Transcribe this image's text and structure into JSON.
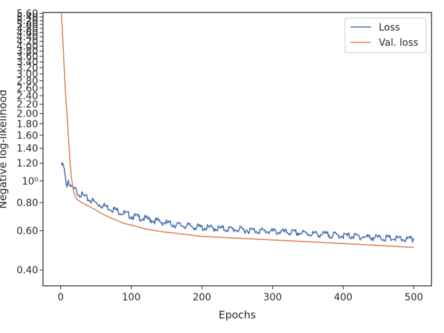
{
  "chart_data": {
    "type": "line",
    "xlabel": "Epochs",
    "ylabel": "Negative log-likelihood",
    "y_scale": "log",
    "xlim": [
      -25,
      525
    ],
    "ylim": [
      0.34,
      5.65
    ],
    "x_ticks": [
      0,
      100,
      200,
      300,
      400,
      500
    ],
    "x_tick_labels": [
      "0",
      "100",
      "200",
      "300",
      "400",
      "500"
    ],
    "y_ticks": [
      0.4,
      0.6,
      0.8,
      1.0,
      1.2,
      1.4,
      1.6,
      1.8,
      2.0,
      2.2,
      2.4,
      2.6,
      2.8,
      3.0,
      3.2,
      3.4,
      3.6,
      3.8,
      4.0,
      4.2,
      4.4,
      4.6,
      4.8,
      5.0,
      5.2,
      5.4,
      5.6
    ],
    "y_tick_labels": [
      "0.40",
      "0.60",
      "0.80",
      "10⁰",
      "1.20",
      "1.40",
      "1.60",
      "1.80",
      "2.00",
      "2.20",
      "2.40",
      "2.60",
      "2.80",
      "3.00",
      "3.20",
      "3.40",
      "3.60",
      "3.80",
      "4.00",
      "4.20",
      "4.40",
      "4.60",
      "4.80",
      "5.00",
      "5.20",
      "5.40",
      "5.60"
    ],
    "legend": {
      "placement": "top-right"
    },
    "grid": false,
    "series": [
      {
        "name": "Loss",
        "color": "#4c72b0",
        "x": [
          1,
          3,
          5,
          7,
          9,
          11,
          13,
          15,
          18,
          20,
          22,
          25,
          30,
          35,
          40,
          45,
          50,
          60,
          70,
          80,
          90,
          100,
          110,
          120,
          130,
          140,
          150,
          160,
          170,
          180,
          190,
          200,
          220,
          240,
          260,
          280,
          300,
          320,
          340,
          360,
          380,
          400,
          420,
          440,
          460,
          480,
          500
        ],
        "y": [
          1.19,
          1.2,
          1.14,
          1.03,
          0.97,
          1.03,
          0.98,
          0.95,
          0.93,
          0.93,
          0.92,
          0.9,
          0.88,
          0.86,
          0.84,
          0.83,
          0.81,
          0.79,
          0.77,
          0.75,
          0.73,
          0.71,
          0.7,
          0.69,
          0.68,
          0.67,
          0.66,
          0.65,
          0.645,
          0.64,
          0.635,
          0.63,
          0.625,
          0.62,
          0.615,
          0.61,
          0.605,
          0.6,
          0.595,
          0.59,
          0.585,
          0.58,
          0.575,
          0.57,
          0.565,
          0.56,
          0.555
        ]
      },
      {
        "name": "Val. loss",
        "color": "#dd8452",
        "x": [
          1,
          3,
          5,
          7,
          9,
          11,
          13,
          15,
          17,
          19,
          21,
          23,
          25,
          30,
          35,
          40,
          50,
          60,
          70,
          80,
          90,
          100,
          120,
          140,
          160,
          180,
          200,
          250,
          300,
          350,
          400,
          450,
          500
        ],
        "y": [
          5.6,
          4.3,
          3.2,
          2.4,
          2.0,
          1.55,
          1.25,
          1.05,
          0.95,
          0.88,
          0.85,
          0.83,
          0.82,
          0.8,
          0.785,
          0.77,
          0.74,
          0.71,
          0.685,
          0.665,
          0.645,
          0.635,
          0.61,
          0.595,
          0.585,
          0.575,
          0.565,
          0.555,
          0.545,
          0.535,
          0.525,
          0.515,
          0.505
        ]
      }
    ]
  }
}
